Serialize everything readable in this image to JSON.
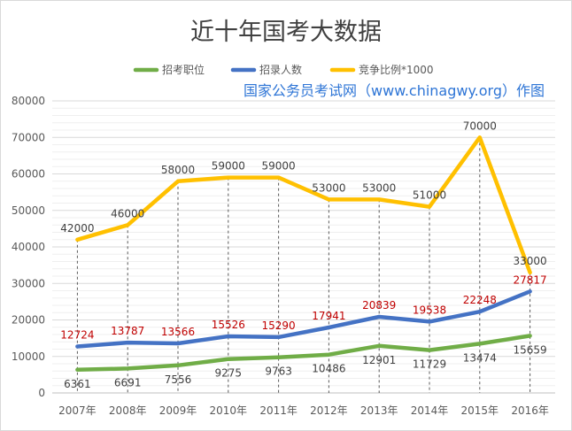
{
  "chart_data": {
    "type": "line",
    "title": "近十年国考大数据",
    "watermark": "国家公务员考试网（www.chinagwy.org）作图",
    "categories": [
      "2007年",
      "2008年",
      "2009年",
      "2010年",
      "2011年",
      "2012年",
      "2013年",
      "2014年",
      "2015年",
      "2016年"
    ],
    "ylim": [
      0,
      80000
    ],
    "yticks": [
      "0",
      "10000",
      "20000",
      "30000",
      "40000",
      "50000",
      "60000",
      "70000",
      "80000"
    ],
    "grid": true,
    "legend_position": "top-center",
    "series": [
      {
        "name": "招考职位",
        "color": "#70ad47",
        "label_color": "#404040",
        "label_side": "below",
        "values": [
          6361,
          6691,
          7556,
          9275,
          9763,
          10486,
          12901,
          11729,
          13474,
          15659
        ]
      },
      {
        "name": "招录人数",
        "color": "#4472c4",
        "label_color": "#c00000",
        "label_side": "above",
        "values": [
          12724,
          13787,
          13566,
          15526,
          15290,
          17941,
          20839,
          19538,
          22248,
          27817
        ]
      },
      {
        "name": "竞争比例*1000",
        "color": "#ffc000",
        "label_color": "#404040",
        "label_side": "above",
        "values": [
          42000,
          46000,
          58000,
          59000,
          59000,
          53000,
          53000,
          51000,
          70000,
          33000
        ]
      }
    ]
  }
}
